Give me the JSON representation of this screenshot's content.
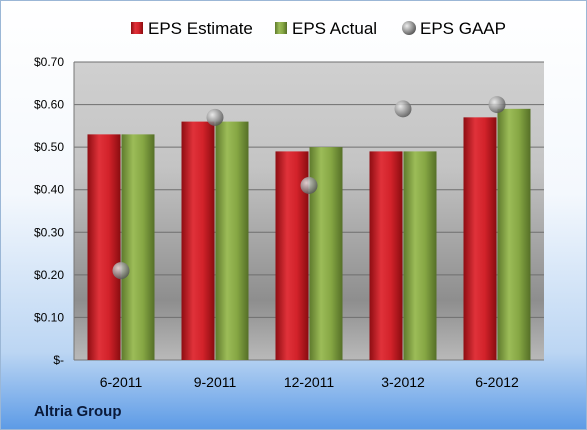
{
  "chart_data": {
    "type": "bar",
    "categories": [
      "6-2011",
      "9-2011",
      "12-2011",
      "3-2012",
      "6-2012"
    ],
    "series": [
      {
        "name": "EPS Estimate",
        "kind": "bar",
        "color": "#d9242c",
        "values": [
          0.53,
          0.56,
          0.49,
          0.49,
          0.57
        ]
      },
      {
        "name": "EPS Actual",
        "kind": "bar",
        "color": "#8fb04a",
        "values": [
          0.53,
          0.56,
          0.5,
          0.49,
          0.59
        ]
      },
      {
        "name": "EPS GAAP",
        "kind": "scatter",
        "color": "#9aa0a6",
        "values": [
          0.21,
          0.57,
          0.41,
          0.59,
          0.6
        ]
      }
    ],
    "ylim": [
      0,
      0.7
    ],
    "yticks": [
      {
        "value": 0.0,
        "label": "$-"
      },
      {
        "value": 0.1,
        "label": "$0.10"
      },
      {
        "value": 0.2,
        "label": "$0.20"
      },
      {
        "value": 0.3,
        "label": "$0.30"
      },
      {
        "value": 0.4,
        "label": "$0.40"
      },
      {
        "value": 0.5,
        "label": "$0.50"
      },
      {
        "value": 0.6,
        "label": "$0.60"
      },
      {
        "value": 0.7,
        "label": "$0.70"
      }
    ],
    "grid": true,
    "legend_position": "top"
  },
  "footer": {
    "company": "Altria Group"
  }
}
